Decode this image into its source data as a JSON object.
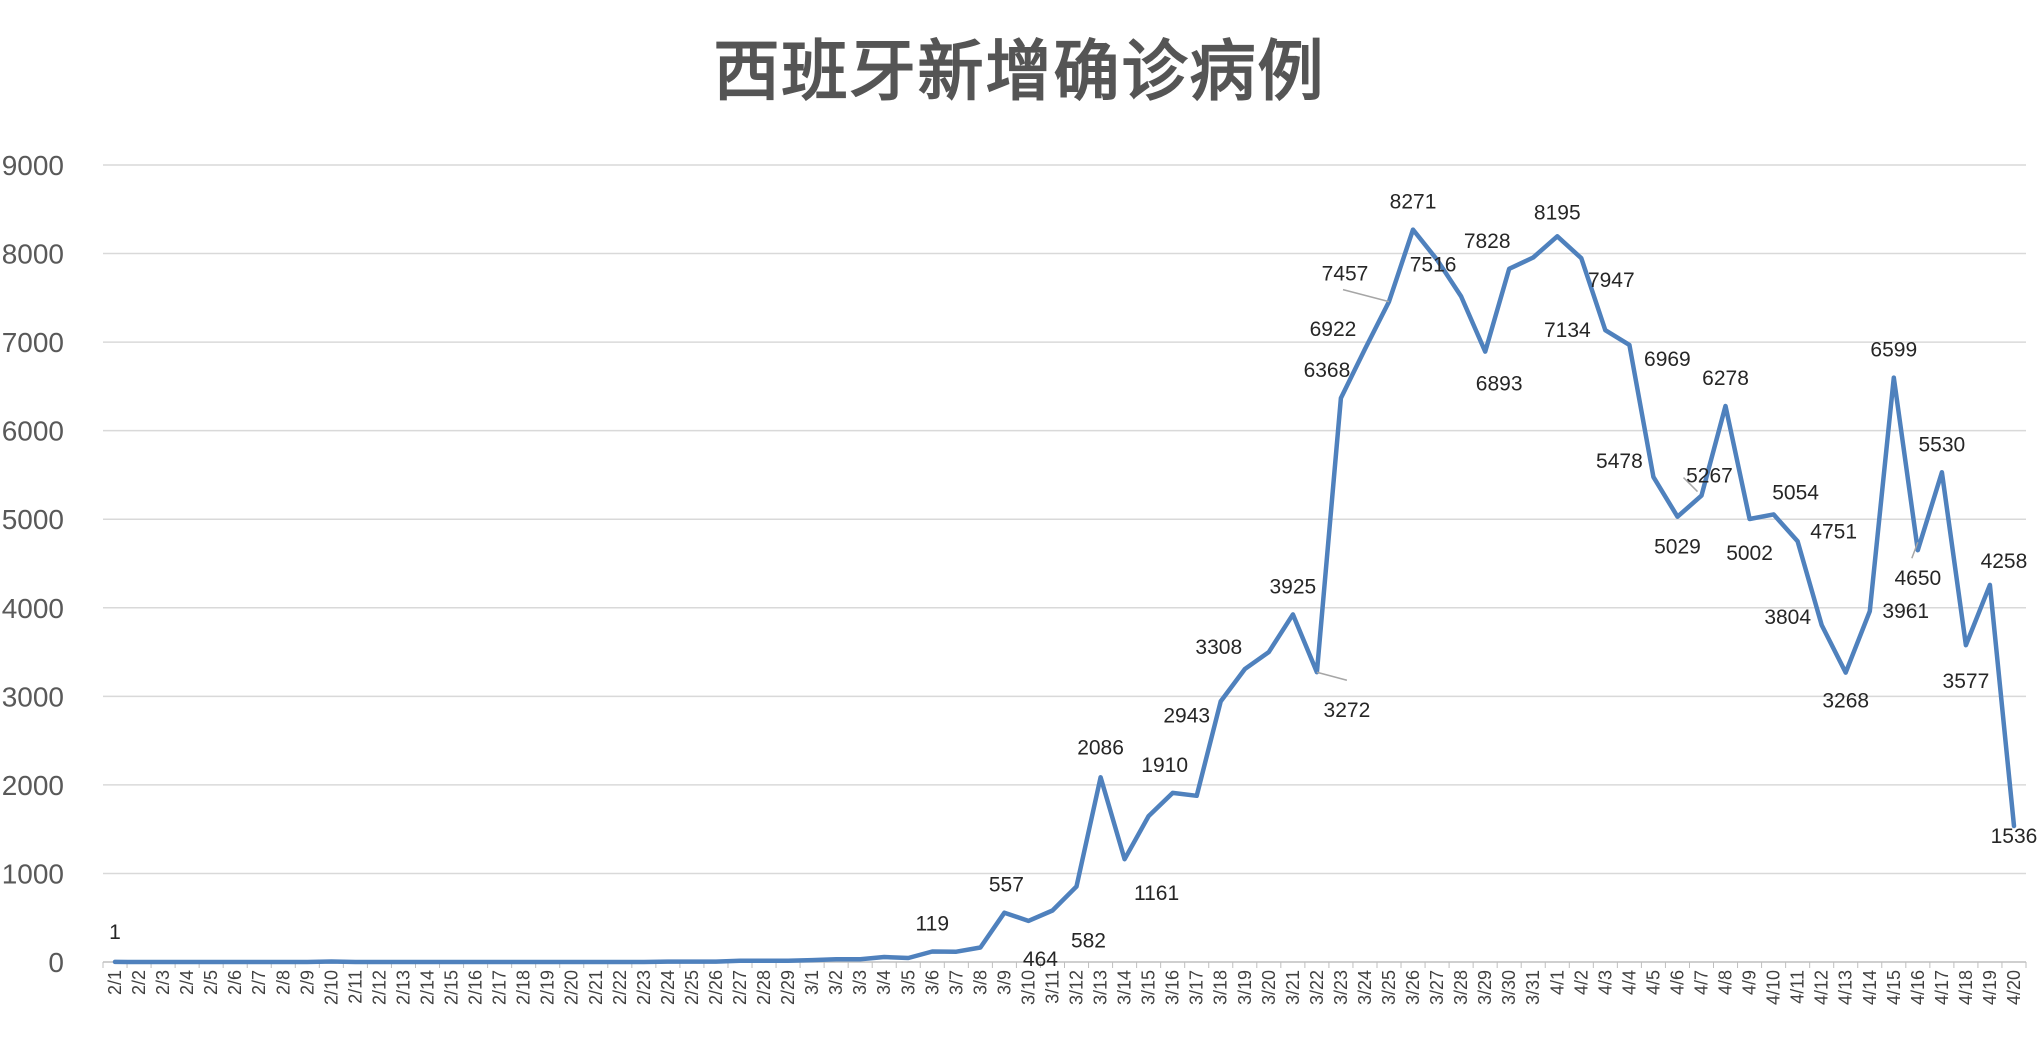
{
  "chart_data": {
    "type": "line",
    "title": "西班牙新增确诊病例",
    "xlabel": "",
    "ylabel": "",
    "ylim": [
      0,
      9000
    ],
    "yticks": [
      0,
      1000,
      2000,
      3000,
      4000,
      5000,
      6000,
      7000,
      8000,
      9000
    ],
    "grid": true,
    "legend": "none",
    "line_color": "#4F81BD",
    "categories": [
      "2/1",
      "2/2",
      "2/3",
      "2/4",
      "2/5",
      "2/6",
      "2/7",
      "2/8",
      "2/9",
      "2/10",
      "2/11",
      "2/12",
      "2/13",
      "2/14",
      "2/15",
      "2/16",
      "2/17",
      "2/18",
      "2/19",
      "2/20",
      "2/21",
      "2/22",
      "2/23",
      "2/24",
      "2/25",
      "2/26",
      "2/27",
      "2/28",
      "2/29",
      "3/1",
      "3/2",
      "3/3",
      "3/4",
      "3/5",
      "3/6",
      "3/7",
      "3/8",
      "3/9",
      "3/10",
      "3/11",
      "3/12",
      "3/13",
      "3/14",
      "3/15",
      "3/16",
      "3/17",
      "3/18",
      "3/19",
      "3/20",
      "3/21",
      "3/22",
      "3/23",
      "3/24",
      "3/25",
      "3/26",
      "3/27",
      "3/28",
      "3/29",
      "3/30",
      "3/31",
      "4/1",
      "4/2",
      "4/3",
      "4/4",
      "4/5",
      "4/6",
      "4/7",
      "4/8",
      "4/9",
      "4/10",
      "4/11",
      "4/12",
      "4/13",
      "4/14",
      "4/15",
      "4/16",
      "4/17",
      "4/18",
      "4/19",
      "4/20"
    ],
    "values": [
      1,
      0,
      0,
      0,
      0,
      0,
      0,
      0,
      0,
      6,
      0,
      0,
      0,
      0,
      0,
      0,
      0,
      0,
      0,
      0,
      0,
      0,
      0,
      4,
      4,
      5,
      13,
      15,
      13,
      21,
      32,
      32,
      57,
      45,
      119,
      116,
      164,
      557,
      464,
      582,
      853,
      2086,
      1161,
      1648,
      1910,
      1877,
      2943,
      3308,
      3500,
      3925,
      3272,
      6368,
      6922,
      7457,
      8271,
      7930,
      7516,
      6893,
      7828,
      7956,
      8195,
      7947,
      7134,
      6969,
      5478,
      5029,
      5267,
      6278,
      5002,
      5054,
      4751,
      3804,
      3268,
      3961,
      6599,
      4650,
      5530,
      3577,
      4258,
      1536
    ],
    "data_labels": [
      {
        "category": "2/1",
        "text": "1"
      },
      {
        "category": "3/6",
        "text": "119"
      },
      {
        "category": "3/9",
        "text": "557"
      },
      {
        "category": "3/10",
        "text": "464"
      },
      {
        "category": "3/11",
        "text": "582"
      },
      {
        "category": "3/13",
        "text": "2086"
      },
      {
        "category": "3/14",
        "text": "1161"
      },
      {
        "category": "3/16",
        "text": "1910"
      },
      {
        "category": "3/18",
        "text": "2943"
      },
      {
        "category": "3/19",
        "text": "3308"
      },
      {
        "category": "3/21",
        "text": "3925"
      },
      {
        "category": "3/22",
        "text": "3272"
      },
      {
        "category": "3/23",
        "text": "6368"
      },
      {
        "category": "3/24",
        "text": "6922"
      },
      {
        "category": "3/25",
        "text": "7457"
      },
      {
        "category": "3/26",
        "text": "8271"
      },
      {
        "category": "3/28",
        "text": "7516"
      },
      {
        "category": "3/29",
        "text": "6893"
      },
      {
        "category": "3/30",
        "text": "7828"
      },
      {
        "category": "4/1",
        "text": "8195"
      },
      {
        "category": "4/2",
        "text": "7947"
      },
      {
        "category": "4/3",
        "text": "7134"
      },
      {
        "category": "4/4",
        "text": "6969"
      },
      {
        "category": "4/5",
        "text": "5478"
      },
      {
        "category": "4/6",
        "text": "5029"
      },
      {
        "category": "4/7",
        "text": "5267"
      },
      {
        "category": "4/8",
        "text": "6278"
      },
      {
        "category": "4/9",
        "text": "5002"
      },
      {
        "category": "4/10",
        "text": "5054"
      },
      {
        "category": "4/11",
        "text": "4751"
      },
      {
        "category": "4/12",
        "text": "3804"
      },
      {
        "category": "4/13",
        "text": "3268"
      },
      {
        "category": "4/14",
        "text": "3961"
      },
      {
        "category": "4/15",
        "text": "6599"
      },
      {
        "category": "4/16",
        "text": "4650"
      },
      {
        "category": "4/17",
        "text": "5530"
      },
      {
        "category": "4/18",
        "text": "3577"
      },
      {
        "category": "4/19",
        "text": "4258"
      },
      {
        "category": "4/20",
        "text": "1536"
      }
    ]
  }
}
